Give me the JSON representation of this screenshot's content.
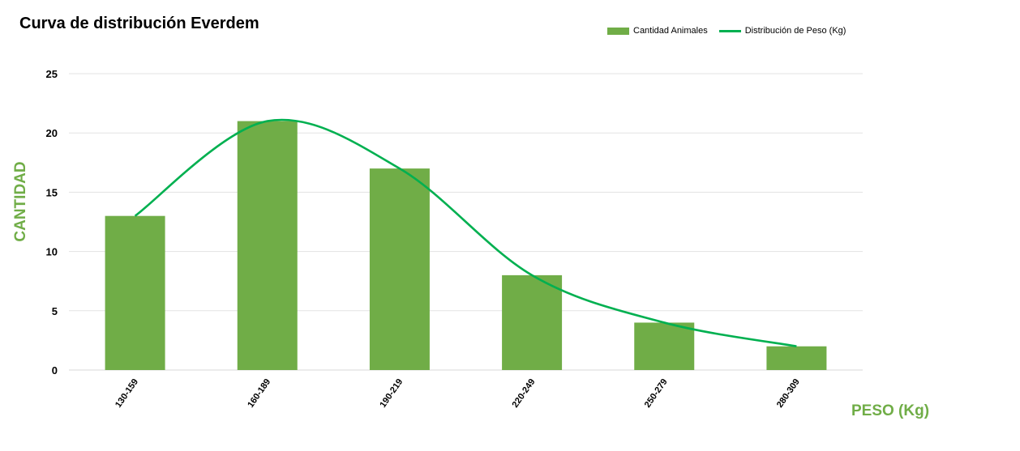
{
  "chart_data": {
    "type": "bar",
    "title": "Curva de distribución Everdem",
    "categories": [
      "130-159",
      "160-189",
      "190-219",
      "220-249",
      "250-279",
      "280-309"
    ],
    "series": [
      {
        "name": "Cantidad Animales",
        "kind": "bar",
        "color": "#70AD47",
        "values": [
          13,
          21,
          17,
          8,
          4,
          2
        ]
      },
      {
        "name": "Distribución de Peso (Kg)",
        "kind": "line",
        "smooth": true,
        "color": "#00B050",
        "values": [
          13,
          21,
          17,
          8,
          4,
          2
        ]
      }
    ],
    "xlabel": "PESO (Kg)",
    "ylabel": "CANTIDAD",
    "axis_title_color": "#70AD47",
    "ylim": [
      0,
      25
    ],
    "yticks": [
      "0",
      "5",
      "10",
      "15",
      "20",
      "25"
    ],
    "grid": true,
    "legend_position": "top-right"
  }
}
